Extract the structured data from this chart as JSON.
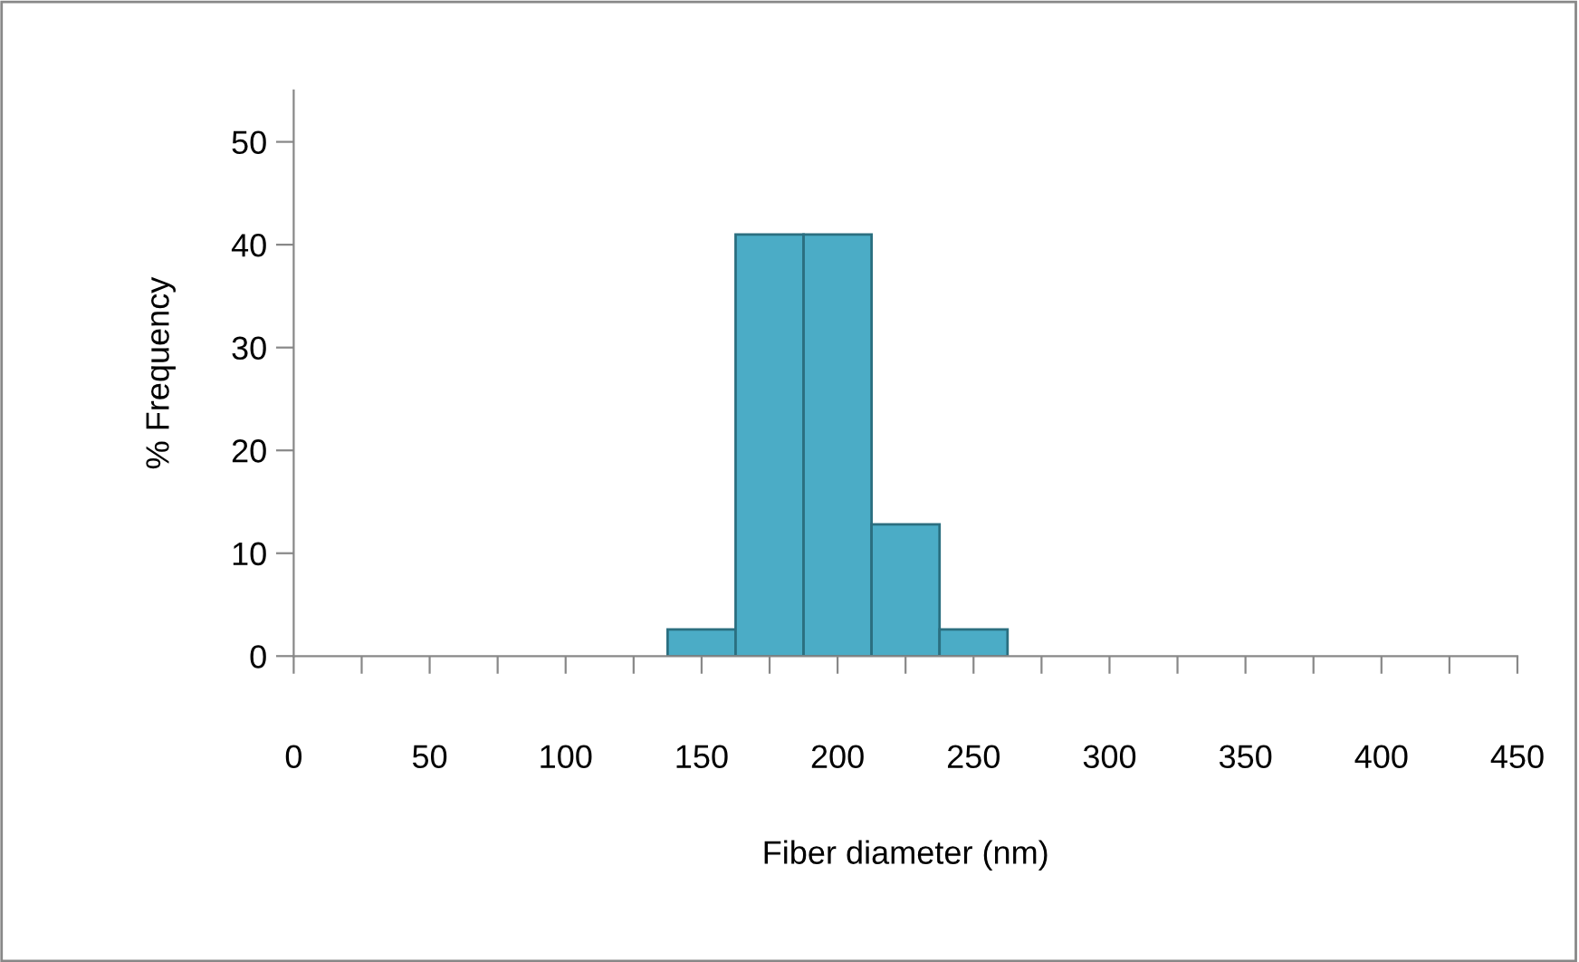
{
  "chart_data": {
    "type": "histogram",
    "xlabel": "Fiber diameter (nm)",
    "ylabel": "% Frequency",
    "bins": [
      137.5,
      162.5,
      187.5,
      212.5,
      237.5,
      262.5
    ],
    "values": [
      2.6,
      41,
      41,
      12.8,
      2.6
    ],
    "color": "#4bacc6",
    "xlim": [
      0,
      450
    ],
    "ylim": [
      0,
      55
    ],
    "xticks": [
      0,
      {
        "value": 25,
        "label": null
      },
      50,
      {
        "value": 75,
        "label": null
      },
      100,
      {
        "value": 125,
        "label": null
      },
      150,
      {
        "value": 175,
        "label": null
      },
      200,
      {
        "value": 225,
        "label": null
      },
      250,
      {
        "value": 275,
        "label": null
      },
      300,
      {
        "value": 325,
        "label": null
      },
      350,
      {
        "value": 375,
        "label": null
      },
      400,
      {
        "value": 425,
        "label": null
      },
      450
    ],
    "yticks": [
      0,
      10,
      20,
      30,
      40,
      50
    ],
    "grid": false
  }
}
